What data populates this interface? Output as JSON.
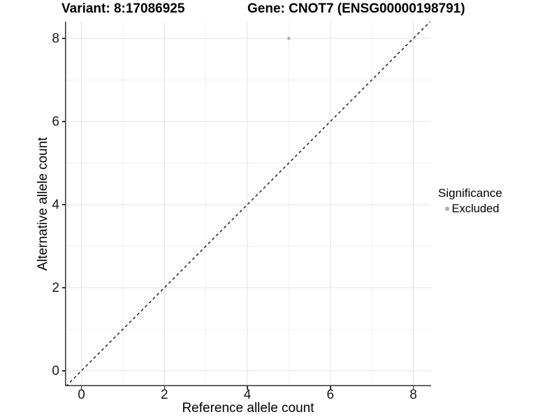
{
  "figure": {
    "background": "#ffffff"
  },
  "chart_data": {
    "type": "scatter",
    "titles": {
      "left": "Variant: 8:17086925",
      "right": "Gene: CNOT7 (ENSG00000198791)"
    },
    "xlabel": "Reference allele count",
    "ylabel": "Alternative allele count",
    "xlim": [
      -0.4,
      8.4
    ],
    "ylim": [
      -0.4,
      8.4
    ],
    "x_ticks": [
      0,
      2,
      4,
      6,
      8
    ],
    "y_ticks": [
      0,
      2,
      4,
      6,
      8
    ],
    "x_minor_ticks": [
      1,
      3,
      5,
      7
    ],
    "y_minor_ticks": [
      1,
      3,
      5,
      7
    ],
    "grid": "major+minor",
    "points": [
      {
        "x": 5,
        "y": 8,
        "series": "Excluded"
      }
    ],
    "reference_line": {
      "slope": 1,
      "intercept": 0,
      "style": "dashed"
    },
    "legend": {
      "title": "Significance",
      "position": "right",
      "entries": [
        {
          "label": "Excluded",
          "color": "#b0b0b0"
        }
      ]
    },
    "colors": {
      "point": "#b0b0b0",
      "grid_major": "#e3e3e3",
      "grid_minor": "#f0f0f0",
      "axis_line": "#333333",
      "tick": "#333333",
      "reference_line": "#000000",
      "text": "#000000"
    }
  }
}
